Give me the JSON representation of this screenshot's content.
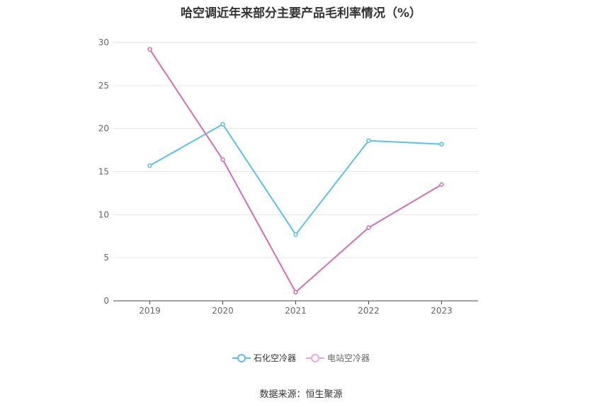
{
  "chart_data": {
    "type": "line",
    "title": "哈空调近年来部分主要产品毛利率情况（%）",
    "categories": [
      "2019",
      "2020",
      "2021",
      "2022",
      "2023"
    ],
    "series": [
      {
        "name": "石化空冷器",
        "values": [
          15.7,
          20.5,
          7.7,
          18.6,
          18.2
        ],
        "color": "#5bc0eb"
      },
      {
        "name": "电站空冷器",
        "values": [
          29.2,
          16.4,
          1.0,
          8.5,
          13.5
        ],
        "color": "#d46fb4"
      }
    ],
    "ylim": [
      0,
      30
    ],
    "yticks": [
      0,
      5,
      10,
      15,
      20,
      25,
      30
    ],
    "grid": true,
    "legend": "bottom"
  },
  "source": "数据来源：恒生聚源"
}
